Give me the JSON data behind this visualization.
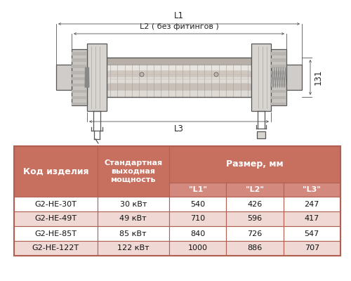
{
  "bg_color": "#ffffff",
  "table_header_color": "#c87060",
  "table_subheader_color": "#d4897f",
  "table_row_odd_color": "#f0d8d4",
  "table_row_even_color": "#ffffff",
  "table_border_color": "#b06050",
  "size_header": "Размер, мм",
  "rows": [
    [
      "G2-HE-30T",
      "30 кВт",
      "540",
      "426",
      "247"
    ],
    [
      "G2-HE-49T",
      "49 кВт",
      "710",
      "596",
      "417"
    ],
    [
      "G2-HE-85T",
      "85 кВт",
      "840",
      "726",
      "547"
    ],
    [
      "G2-HE-122T",
      "122 кВт",
      "1000",
      "886",
      "707"
    ]
  ],
  "dim_label_131": "131",
  "dim_label_L1": "L1",
  "dim_label_L2": "L2 ( без фитингов )",
  "dim_label_L3": "L3",
  "font_size_table": 8.0,
  "font_size_header": 8.5,
  "font_size_dim": 8.5
}
